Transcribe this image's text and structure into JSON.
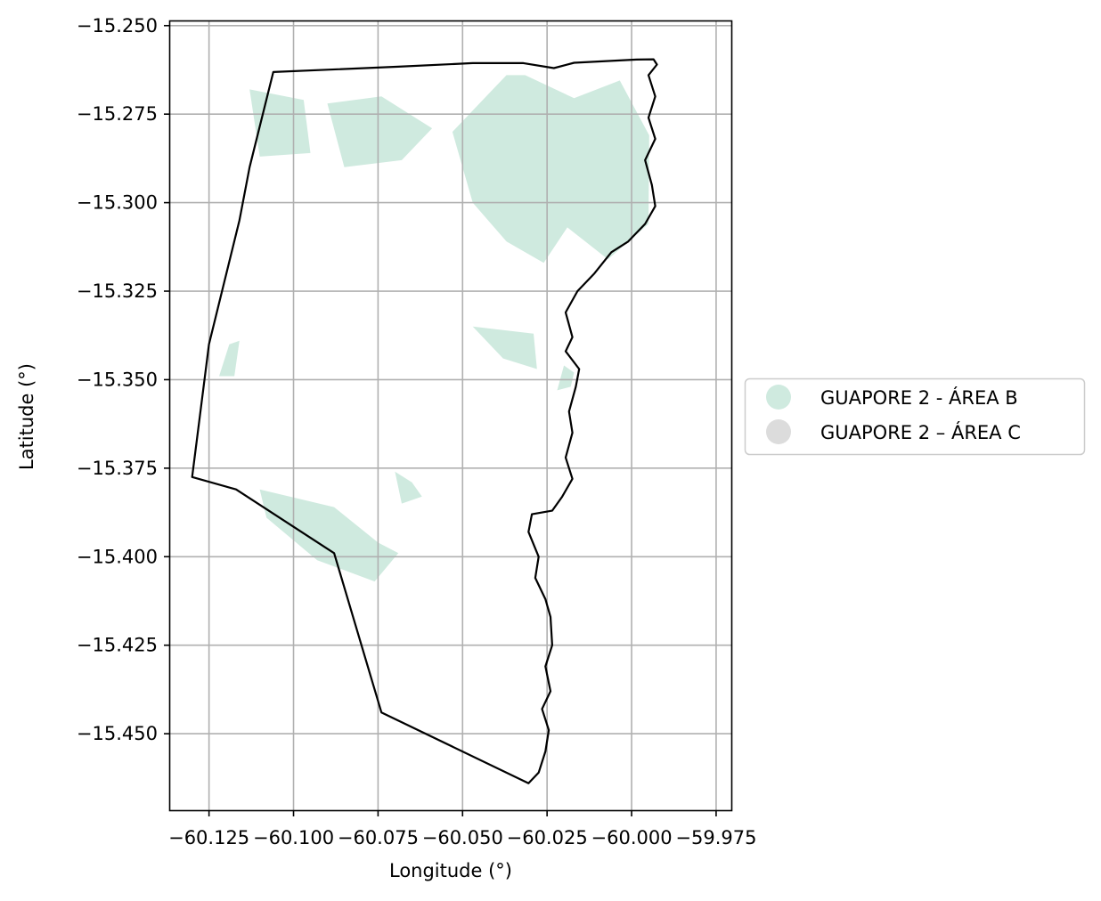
{
  "chart_data": {
    "type": "map",
    "xlabel": "Longitude (°)",
    "ylabel": "Latitude (°)",
    "xlim": [
      -60.1365,
      -59.9705
    ],
    "ylim": [
      -15.4716,
      -15.2488
    ],
    "x_ticks": [
      -60.125,
      -60.1,
      -60.075,
      -60.05,
      -60.025,
      -60.0,
      -59.975
    ],
    "x_tick_labels": [
      "−60.125",
      "−60.100",
      "−60.075",
      "−60.050",
      "−60.025",
      "−60.000",
      "−59.975"
    ],
    "y_ticks": [
      -15.25,
      -15.275,
      -15.3,
      -15.325,
      -15.35,
      -15.375,
      -15.4,
      -15.425,
      -15.45
    ],
    "y_tick_labels": [
      "−15.250",
      "−15.275",
      "−15.300",
      "−15.325",
      "−15.350",
      "−15.375",
      "−15.400",
      "−15.425",
      "−15.450"
    ],
    "grid": true,
    "legend_position": "right-center",
    "colors": {
      "area_b": "#cfeadf",
      "area_c": "#dcdcdc",
      "boundary": "#000000",
      "grid": "#b0b0b0"
    },
    "legend": [
      {
        "label": "GUAPORE 2 - ÁREA B",
        "color": "#cfeadf"
      },
      {
        "label": "GUAPORE 2 – ÁREA C",
        "color": "#dcdcdc"
      }
    ],
    "boundary": [
      [
        -60.106,
        -15.2631
      ],
      [
        -60.069,
        -15.2616
      ],
      [
        -60.047,
        -15.2606
      ],
      [
        -60.032,
        -15.2606
      ],
      [
        -60.023,
        -15.262
      ],
      [
        -60.017,
        -15.2605
      ],
      [
        -59.9985,
        -15.2596
      ],
      [
        -59.9935,
        -15.2595
      ],
      [
        -59.9925,
        -15.261
      ],
      [
        -59.995,
        -15.264
      ],
      [
        -59.993,
        -15.27
      ],
      [
        -59.995,
        -15.276
      ],
      [
        -59.993,
        -15.282
      ],
      [
        -59.996,
        -15.288
      ],
      [
        -59.994,
        -15.295
      ],
      [
        -59.993,
        -15.301
      ],
      [
        -59.996,
        -15.306
      ],
      [
        -60.001,
        -15.311
      ],
      [
        -60.006,
        -15.314
      ],
      [
        -60.011,
        -15.32
      ],
      [
        -60.016,
        -15.325
      ],
      [
        -60.0195,
        -15.331
      ],
      [
        -60.0175,
        -15.338
      ],
      [
        -60.0195,
        -15.342
      ],
      [
        -60.0155,
        -15.347
      ],
      [
        -60.0165,
        -15.352
      ],
      [
        -60.0185,
        -15.359
      ],
      [
        -60.0175,
        -15.365
      ],
      [
        -60.0195,
        -15.372
      ],
      [
        -60.0175,
        -15.378
      ],
      [
        -60.0205,
        -15.383
      ],
      [
        -60.0235,
        -15.387
      ],
      [
        -60.0295,
        -15.388
      ],
      [
        -60.0305,
        -15.393
      ],
      [
        -60.0275,
        -15.4
      ],
      [
        -60.0285,
        -15.406
      ],
      [
        -60.0255,
        -15.412
      ],
      [
        -60.024,
        -15.417
      ],
      [
        -60.0235,
        -15.425
      ],
      [
        -60.0255,
        -15.431
      ],
      [
        -60.024,
        -15.438
      ],
      [
        -60.0265,
        -15.443
      ],
      [
        -60.0245,
        -15.449
      ],
      [
        -60.0255,
        -15.455
      ],
      [
        -60.0275,
        -15.461
      ],
      [
        -60.0305,
        -15.464
      ],
      [
        -60.074,
        -15.444
      ],
      [
        -60.088,
        -15.399
      ],
      [
        -60.117,
        -15.381
      ],
      [
        -60.13,
        -15.3775
      ],
      [
        -60.125,
        -15.34
      ],
      [
        -60.116,
        -15.305
      ],
      [
        -60.113,
        -15.29
      ],
      [
        -60.106,
        -15.2631
      ]
    ],
    "area_b": [
      [
        [
          -60.113,
          -15.268
        ],
        [
          -60.097,
          -15.271
        ],
        [
          -60.095,
          -15.286
        ],
        [
          -60.11,
          -15.287
        ]
      ],
      [
        [
          -60.09,
          -15.272
        ],
        [
          -60.074,
          -15.27
        ],
        [
          -60.059,
          -15.279
        ],
        [
          -60.068,
          -15.288
        ],
        [
          -60.085,
          -15.29
        ]
      ],
      [
        [
          -60.0315,
          -15.264
        ],
        [
          -60.017,
          -15.2705
        ],
        [
          -60.0035,
          -15.2655
        ],
        [
          -59.9948,
          -15.281
        ],
        [
          -59.995,
          -15.306
        ],
        [
          -60.007,
          -15.316
        ],
        [
          -60.019,
          -15.307
        ],
        [
          -60.026,
          -15.317
        ],
        [
          -60.037,
          -15.311
        ],
        [
          -60.047,
          -15.3
        ],
        [
          -60.053,
          -15.28
        ],
        [
          -60.043,
          -15.27
        ],
        [
          -60.037,
          -15.264
        ]
      ],
      [
        [
          -60.047,
          -15.335
        ],
        [
          -60.029,
          -15.337
        ],
        [
          -60.028,
          -15.347
        ],
        [
          -60.038,
          -15.344
        ]
      ],
      [
        [
          -60.119,
          -15.34
        ],
        [
          -60.116,
          -15.339
        ],
        [
          -60.1175,
          -15.349
        ],
        [
          -60.122,
          -15.349
        ]
      ],
      [
        [
          -60.11,
          -15.381
        ],
        [
          -60.088,
          -15.386
        ],
        [
          -60.075,
          -15.396
        ],
        [
          -60.069,
          -15.399
        ],
        [
          -60.076,
          -15.407
        ],
        [
          -60.093,
          -15.401
        ],
        [
          -60.108,
          -15.389
        ]
      ],
      [
        [
          -60.07,
          -15.376
        ],
        [
          -60.065,
          -15.379
        ],
        [
          -60.062,
          -15.383
        ],
        [
          -60.068,
          -15.385
        ]
      ],
      [
        [
          -60.02,
          -15.346
        ],
        [
          -60.017,
          -15.348
        ],
        [
          -60.018,
          -15.352
        ],
        [
          -60.022,
          -15.353
        ]
      ]
    ]
  }
}
